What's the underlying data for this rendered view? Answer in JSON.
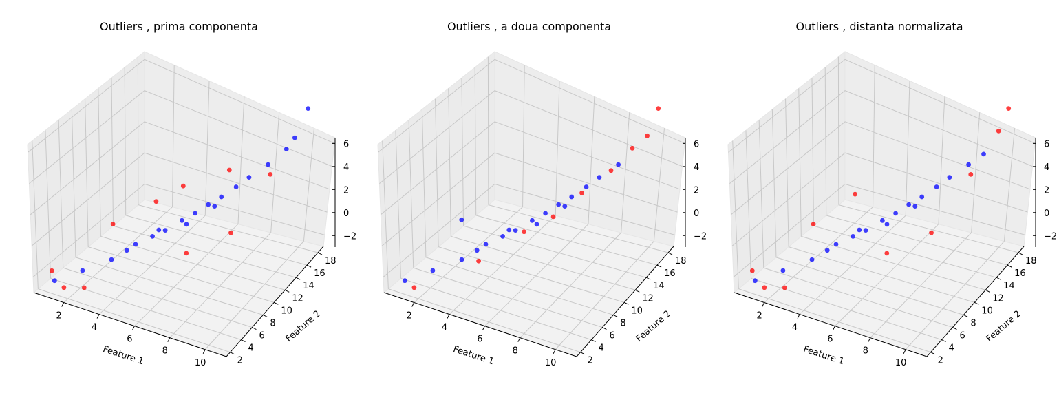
{
  "chart_data": [
    {
      "type": "scatter",
      "projection": "3d",
      "title": "Outliers , prima componenta",
      "xlabel": "Feature 1",
      "ylabel": "Feature 2",
      "zlabel": "",
      "xlim": [
        0.3,
        11.2
      ],
      "ylim": [
        1.3,
        19.0
      ],
      "zlim": [
        -3.0,
        6.5
      ],
      "xticks": [
        2,
        4,
        6,
        8,
        10
      ],
      "yticks": [
        2,
        4,
        6,
        8,
        10,
        12,
        14,
        16,
        18
      ],
      "zticks": [
        -2,
        0,
        2,
        4,
        6
      ],
      "grid": true,
      "series": [
        {
          "color": "#0000ff",
          "points": [
            [
              1.2,
              2.1,
              -1.9
            ],
            [
              2.3,
              3.5,
              -1.2
            ],
            [
              3.4,
              5.1,
              -0.6
            ],
            [
              4.2,
              6.8,
              0.1
            ],
            [
              4.8,
              7.9,
              0.4
            ],
            [
              5.3,
              8.6,
              0.7
            ],
            [
              5.9,
              9.7,
              1.1
            ],
            [
              6.4,
              10.5,
              1.4
            ],
            [
              6.9,
              11.3,
              1.8
            ],
            [
              7.4,
              12.1,
              2.1
            ],
            [
              7.9,
              13.2,
              2.4
            ],
            [
              8.4,
              14.0,
              2.8
            ],
            [
              9.1,
              15.3,
              3.2
            ],
            [
              9.8,
              16.5,
              3.8
            ],
            [
              10.6,
              18.0,
              5.8
            ],
            [
              10.1,
              17.1,
              4.3
            ],
            [
              3.9,
              6.2,
              -0.2
            ],
            [
              5.1,
              8.1,
              0.9
            ],
            [
              6.1,
              9.9,
              0.8
            ],
            [
              7.1,
              11.8,
              1.5
            ]
          ]
        },
        {
          "color": "#ff0000",
          "points": [
            [
              0.9,
              2.5,
              -1.4
            ],
            [
              1.8,
              1.9,
              -2.1
            ],
            [
              3.1,
              6.2,
              1.5
            ],
            [
              4.6,
              9.1,
              2.3
            ],
            [
              5.6,
              10.8,
              2.9
            ],
            [
              6.6,
              8.4,
              -0.4
            ],
            [
              7.6,
              12.9,
              3.6
            ],
            [
              8.3,
              11.1,
              0.4
            ],
            [
              9.4,
              14.8,
              2.9
            ],
            [
              2.6,
              2.9,
              -2.2
            ]
          ]
        }
      ]
    },
    {
      "type": "scatter",
      "projection": "3d",
      "title": "Outliers , a doua componenta",
      "xlabel": "Feature 1",
      "ylabel": "Feature 2",
      "zlabel": "",
      "xlim": [
        0.3,
        11.2
      ],
      "ylim": [
        1.3,
        19.0
      ],
      "zlim": [
        -3.0,
        6.5
      ],
      "xticks": [
        2,
        4,
        6,
        8,
        10
      ],
      "yticks": [
        2,
        4,
        6,
        8,
        10,
        12,
        14,
        16,
        18
      ],
      "zticks": [
        -2,
        0,
        2,
        4,
        6
      ],
      "grid": true,
      "series": [
        {
          "color": "#0000ff",
          "points": [
            [
              1.2,
              2.1,
              -1.9
            ],
            [
              2.3,
              3.5,
              -1.2
            ],
            [
              3.4,
              5.1,
              -0.6
            ],
            [
              4.2,
              6.8,
              0.1
            ],
            [
              4.8,
              7.9,
              0.4
            ],
            [
              5.3,
              8.6,
              0.7
            ],
            [
              5.9,
              9.7,
              1.1
            ],
            [
              6.4,
              10.5,
              1.4
            ],
            [
              6.9,
              11.3,
              1.8
            ],
            [
              7.4,
              12.1,
              2.1
            ],
            [
              7.9,
              13.2,
              2.4
            ],
            [
              8.4,
              14.0,
              2.8
            ],
            [
              9.1,
              15.3,
              3.2
            ],
            [
              3.9,
              6.2,
              -0.2
            ],
            [
              5.1,
              8.1,
              0.9
            ],
            [
              6.1,
              9.9,
              0.8
            ],
            [
              7.1,
              11.8,
              1.5
            ],
            [
              2.9,
              6.5,
              1.6
            ]
          ]
        },
        {
          "color": "#ff0000",
          "points": [
            [
              1.8,
              1.9,
              -2.1
            ],
            [
              4.1,
              5.9,
              -0.8
            ],
            [
              5.7,
              8.9,
              0.6
            ],
            [
              6.8,
              10.7,
              1.2
            ],
            [
              7.8,
              12.7,
              2.2
            ],
            [
              8.9,
              14.6,
              3.1
            ],
            [
              9.6,
              16.3,
              3.9
            ],
            [
              10.6,
              18.0,
              5.8
            ],
            [
              10.2,
              17.2,
              4.4
            ]
          ]
        }
      ]
    },
    {
      "type": "scatter",
      "projection": "3d",
      "title": "Outliers , distanta normalizata",
      "xlabel": "Feature 1",
      "ylabel": "Feature 2",
      "zlabel": "",
      "xlim": [
        0.3,
        11.2
      ],
      "ylim": [
        1.3,
        19.0
      ],
      "zlim": [
        -3.0,
        6.5
      ],
      "xticks": [
        2,
        4,
        6,
        8,
        10
      ],
      "yticks": [
        2,
        4,
        6,
        8,
        10,
        12,
        14,
        16,
        18
      ],
      "zticks": [
        -2,
        0,
        2,
        4,
        6
      ],
      "grid": true,
      "series": [
        {
          "color": "#0000ff",
          "points": [
            [
              1.2,
              2.1,
              -1.9
            ],
            [
              2.3,
              3.5,
              -1.2
            ],
            [
              3.4,
              5.1,
              -0.6
            ],
            [
              4.2,
              6.8,
              0.1
            ],
            [
              4.8,
              7.9,
              0.4
            ],
            [
              5.3,
              8.6,
              0.7
            ],
            [
              5.9,
              9.7,
              1.1
            ],
            [
              6.4,
              10.5,
              1.4
            ],
            [
              6.9,
              11.3,
              1.8
            ],
            [
              7.4,
              12.1,
              2.1
            ],
            [
              7.9,
              13.2,
              2.4
            ],
            [
              8.4,
              14.0,
              2.8
            ],
            [
              9.1,
              15.3,
              3.2
            ],
            [
              9.7,
              16.2,
              3.6
            ],
            [
              3.9,
              6.2,
              -0.2
            ],
            [
              5.1,
              8.1,
              0.9
            ],
            [
              6.1,
              9.9,
              0.8
            ],
            [
              7.1,
              11.8,
              1.5
            ]
          ]
        },
        {
          "color": "#ff0000",
          "points": [
            [
              0.9,
              2.5,
              -1.4
            ],
            [
              1.8,
              1.9,
              -2.1
            ],
            [
              3.1,
              6.2,
              1.5
            ],
            [
              6.6,
              8.4,
              -0.4
            ],
            [
              8.3,
              11.1,
              0.4
            ],
            [
              9.4,
              14.8,
              2.9
            ],
            [
              10.6,
              18.0,
              5.8
            ],
            [
              10.2,
              17.4,
              4.6
            ],
            [
              2.6,
              2.9,
              -2.2
            ],
            [
              4.4,
              9.4,
              2.6
            ]
          ]
        }
      ]
    }
  ]
}
